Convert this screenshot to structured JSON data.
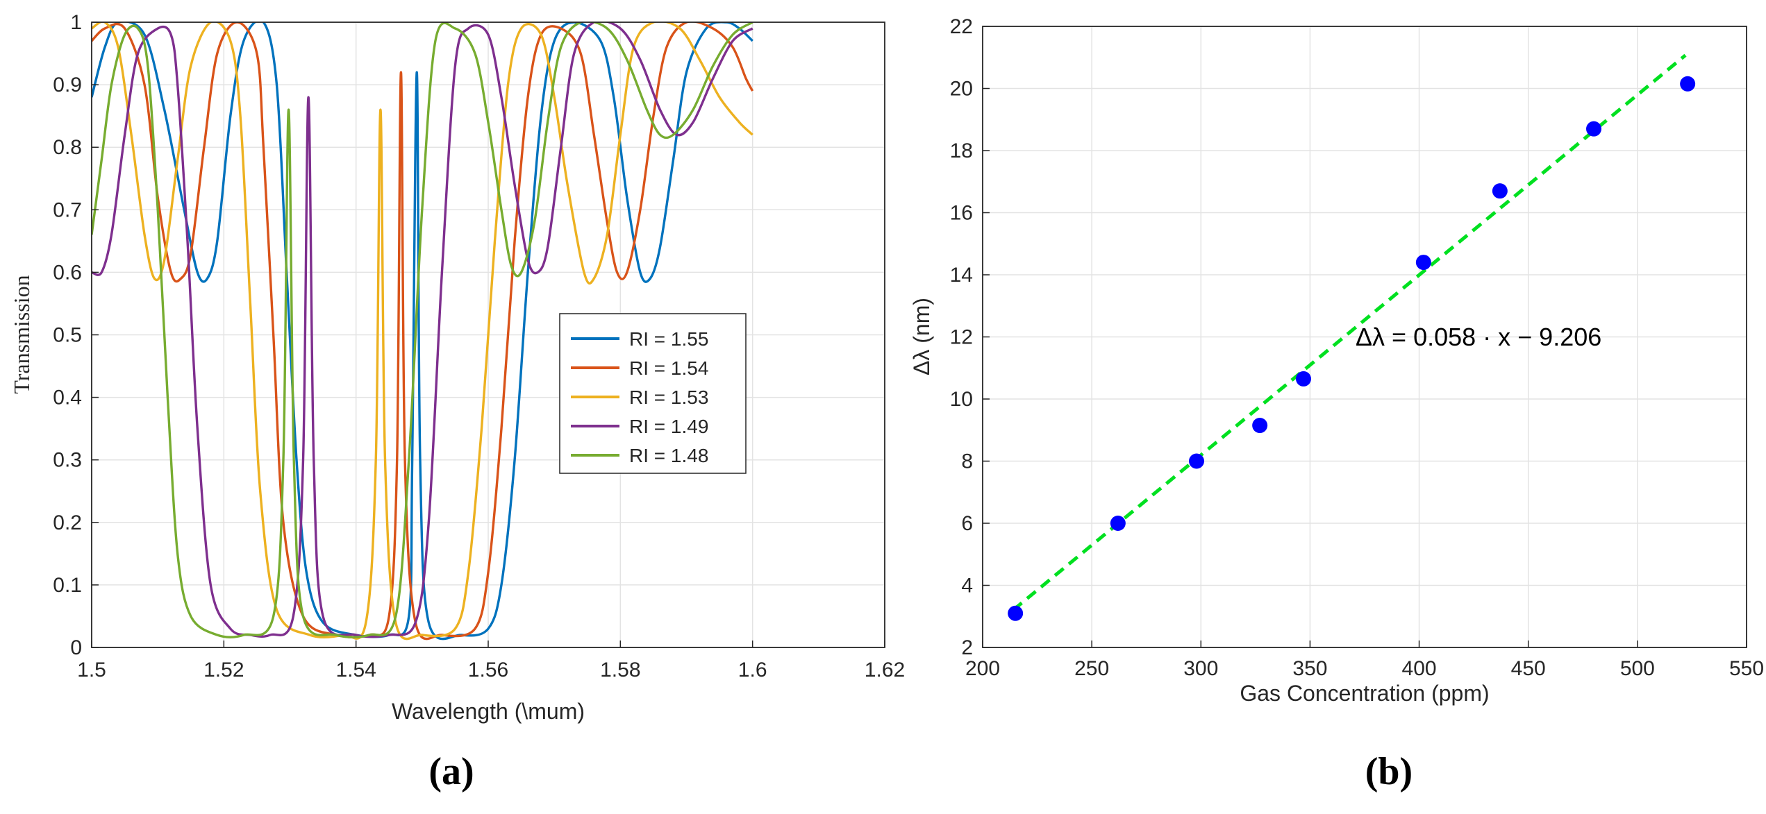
{
  "chart_data": [
    {
      "type": "line",
      "panel": "(a)",
      "xlabel": "Wavelength (\\mum)",
      "ylabel": "Transmission",
      "xlim": [
        1.5,
        1.62
      ],
      "ylim": [
        0,
        1
      ],
      "xticks": [
        "1.5",
        "1.52",
        "1.54",
        "1.56",
        "1.58",
        "1.6",
        "1.62"
      ],
      "yticks": [
        "0",
        "0.1",
        "0.2",
        "0.3",
        "0.4",
        "0.5",
        "0.6",
        "0.7",
        "0.8",
        "0.9",
        "1"
      ],
      "grid": true,
      "legend_position": "center-right",
      "series": [
        {
          "name": "RI = 1.55",
          "color": "#0072BD",
          "points": [
            [
              1.5,
              0.88
            ],
            [
              1.502,
              0.96
            ],
            [
              1.504,
              1.0
            ],
            [
              1.508,
              0.98
            ],
            [
              1.511,
              0.86
            ],
            [
              1.514,
              0.7
            ],
            [
              1.516,
              0.6
            ],
            [
              1.5175,
              0.59
            ],
            [
              1.519,
              0.65
            ],
            [
              1.521,
              0.85
            ],
            [
              1.523,
              0.97
            ],
            [
              1.526,
              1.0
            ],
            [
              1.528,
              0.9
            ],
            [
              1.5295,
              0.6
            ],
            [
              1.531,
              0.3
            ],
            [
              1.5325,
              0.12
            ],
            [
              1.535,
              0.04
            ],
            [
              1.54,
              0.02
            ],
            [
              1.545,
              0.02
            ],
            [
              1.548,
              0.05
            ],
            [
              1.5485,
              0.3
            ],
            [
              1.5492,
              0.92
            ],
            [
              1.5497,
              0.3
            ],
            [
              1.551,
              0.04
            ],
            [
              1.556,
              0.02
            ],
            [
              1.56,
              0.03
            ],
            [
              1.562,
              0.1
            ],
            [
              1.564,
              0.3
            ],
            [
              1.566,
              0.6
            ],
            [
              1.568,
              0.85
            ],
            [
              1.57,
              0.97
            ],
            [
              1.573,
              1.0
            ],
            [
              1.577,
              0.97
            ],
            [
              1.579,
              0.88
            ],
            [
              1.581,
              0.72
            ],
            [
              1.583,
              0.6
            ],
            [
              1.5845,
              0.59
            ],
            [
              1.586,
              0.64
            ],
            [
              1.588,
              0.78
            ],
            [
              1.59,
              0.92
            ],
            [
              1.593,
              0.99
            ],
            [
              1.596,
              1.0
            ],
            [
              1.598,
              0.99
            ],
            [
              1.6,
              0.97
            ]
          ]
        },
        {
          "name": "RI = 1.54",
          "color": "#D95319",
          "points": [
            [
              1.5,
              0.97
            ],
            [
              1.502,
              0.99
            ],
            [
              1.505,
              0.99
            ],
            [
              1.508,
              0.9
            ],
            [
              1.51,
              0.72
            ],
            [
              1.512,
              0.6
            ],
            [
              1.5135,
              0.59
            ],
            [
              1.515,
              0.63
            ],
            [
              1.517,
              0.8
            ],
            [
              1.519,
              0.95
            ],
            [
              1.522,
              1.0
            ],
            [
              1.525,
              0.95
            ],
            [
              1.526,
              0.8
            ],
            [
              1.5275,
              0.5
            ],
            [
              1.529,
              0.2
            ],
            [
              1.532,
              0.05
            ],
            [
              1.537,
              0.02
            ],
            [
              1.542,
              0.02
            ],
            [
              1.545,
              0.05
            ],
            [
              1.5462,
              0.3
            ],
            [
              1.5468,
              0.92
            ],
            [
              1.5474,
              0.3
            ],
            [
              1.549,
              0.04
            ],
            [
              1.553,
              0.02
            ],
            [
              1.558,
              0.03
            ],
            [
              1.56,
              0.12
            ],
            [
              1.562,
              0.35
            ],
            [
              1.564,
              0.65
            ],
            [
              1.566,
              0.88
            ],
            [
              1.568,
              0.98
            ],
            [
              1.571,
              0.99
            ],
            [
              1.574,
              0.95
            ],
            [
              1.576,
              0.82
            ],
            [
              1.578,
              0.68
            ],
            [
              1.5795,
              0.6
            ],
            [
              1.581,
              0.6
            ],
            [
              1.583,
              0.7
            ],
            [
              1.585,
              0.85
            ],
            [
              1.587,
              0.96
            ],
            [
              1.59,
              1.0
            ],
            [
              1.594,
              0.99
            ],
            [
              1.597,
              0.96
            ],
            [
              1.599,
              0.91
            ],
            [
              1.6,
              0.89
            ]
          ]
        },
        {
          "name": "RI = 1.53",
          "color": "#EDB120",
          "points": [
            [
              1.5,
              0.99
            ],
            [
              1.502,
              1.0
            ],
            [
              1.504,
              0.96
            ],
            [
              1.506,
              0.82
            ],
            [
              1.508,
              0.66
            ],
            [
              1.5095,
              0.59
            ],
            [
              1.511,
              0.62
            ],
            [
              1.513,
              0.78
            ],
            [
              1.515,
              0.93
            ],
            [
              1.518,
              1.0
            ],
            [
              1.521,
              0.97
            ],
            [
              1.5225,
              0.85
            ],
            [
              1.524,
              0.55
            ],
            [
              1.5255,
              0.25
            ],
            [
              1.528,
              0.06
            ],
            [
              1.533,
              0.02
            ],
            [
              1.538,
              0.02
            ],
            [
              1.5415,
              0.04
            ],
            [
              1.543,
              0.3
            ],
            [
              1.5437,
              0.86
            ],
            [
              1.5444,
              0.3
            ],
            [
              1.546,
              0.04
            ],
            [
              1.55,
              0.02
            ],
            [
              1.555,
              0.03
            ],
            [
              1.557,
              0.12
            ],
            [
              1.559,
              0.35
            ],
            [
              1.561,
              0.65
            ],
            [
              1.563,
              0.9
            ],
            [
              1.565,
              0.99
            ],
            [
              1.568,
              0.98
            ],
            [
              1.57,
              0.88
            ],
            [
              1.572,
              0.74
            ],
            [
              1.5745,
              0.6
            ],
            [
              1.576,
              0.59
            ],
            [
              1.578,
              0.66
            ],
            [
              1.58,
              0.82
            ],
            [
              1.582,
              0.96
            ],
            [
              1.585,
              1.0
            ],
            [
              1.589,
              0.99
            ],
            [
              1.592,
              0.94
            ],
            [
              1.595,
              0.88
            ],
            [
              1.598,
              0.84
            ],
            [
              1.6,
              0.82
            ]
          ]
        },
        {
          "name": "RI = 1.49",
          "color": "#7E2F8E",
          "points": [
            [
              1.5,
              0.6
            ],
            [
              1.5015,
              0.6
            ],
            [
              1.503,
              0.66
            ],
            [
              1.505,
              0.82
            ],
            [
              1.507,
              0.95
            ],
            [
              1.51,
              0.99
            ],
            [
              1.512,
              0.98
            ],
            [
              1.513,
              0.9
            ],
            [
              1.5145,
              0.65
            ],
            [
              1.516,
              0.35
            ],
            [
              1.518,
              0.1
            ],
            [
              1.521,
              0.03
            ],
            [
              1.524,
              0.02
            ],
            [
              1.527,
              0.02
            ],
            [
              1.5305,
              0.05
            ],
            [
              1.532,
              0.3
            ],
            [
              1.5328,
              0.88
            ],
            [
              1.5336,
              0.3
            ],
            [
              1.535,
              0.05
            ],
            [
              1.54,
              0.02
            ],
            [
              1.545,
              0.02
            ],
            [
              1.549,
              0.04
            ],
            [
              1.551,
              0.2
            ],
            [
              1.553,
              0.6
            ],
            [
              1.555,
              0.93
            ],
            [
              1.557,
              0.99
            ],
            [
              1.56,
              0.98
            ],
            [
              1.562,
              0.88
            ],
            [
              1.564,
              0.74
            ],
            [
              1.566,
              0.62
            ],
            [
              1.5675,
              0.6
            ],
            [
              1.569,
              0.64
            ],
            [
              1.571,
              0.8
            ],
            [
              1.573,
              0.95
            ],
            [
              1.576,
              1.0
            ],
            [
              1.58,
              0.99
            ],
            [
              1.583,
              0.94
            ],
            [
              1.586,
              0.86
            ],
            [
              1.5885,
              0.82
            ],
            [
              1.591,
              0.84
            ],
            [
              1.594,
              0.91
            ],
            [
              1.597,
              0.97
            ],
            [
              1.6,
              0.99
            ]
          ]
        },
        {
          "name": "RI = 1.48",
          "color": "#77AC30",
          "points": [
            [
              1.5,
              0.66
            ],
            [
              1.5015,
              0.78
            ],
            [
              1.503,
              0.9
            ],
            [
              1.505,
              0.98
            ],
            [
              1.507,
              0.99
            ],
            [
              1.5085,
              0.93
            ],
            [
              1.51,
              0.7
            ],
            [
              1.5115,
              0.4
            ],
            [
              1.513,
              0.15
            ],
            [
              1.515,
              0.05
            ],
            [
              1.519,
              0.02
            ],
            [
              1.523,
              0.02
            ],
            [
              1.5275,
              0.05
            ],
            [
              1.529,
              0.3
            ],
            [
              1.5298,
              0.86
            ],
            [
              1.5306,
              0.3
            ],
            [
              1.532,
              0.05
            ],
            [
              1.537,
              0.02
            ],
            [
              1.542,
              0.02
            ],
            [
              1.546,
              0.05
            ],
            [
              1.548,
              0.3
            ],
            [
              1.55,
              0.7
            ],
            [
              1.552,
              0.97
            ],
            [
              1.555,
              0.99
            ],
            [
              1.558,
              0.95
            ],
            [
              1.56,
              0.84
            ],
            [
              1.562,
              0.7
            ],
            [
              1.5635,
              0.61
            ],
            [
              1.565,
              0.6
            ],
            [
              1.567,
              0.68
            ],
            [
              1.569,
              0.84
            ],
            [
              1.571,
              0.96
            ],
            [
              1.574,
              1.0
            ],
            [
              1.578,
              0.99
            ],
            [
              1.581,
              0.94
            ],
            [
              1.584,
              0.86
            ],
            [
              1.586,
              0.82
            ],
            [
              1.588,
              0.82
            ],
            [
              1.591,
              0.86
            ],
            [
              1.594,
              0.93
            ],
            [
              1.597,
              0.98
            ],
            [
              1.6,
              1.0
            ]
          ]
        }
      ]
    },
    {
      "type": "scatter",
      "panel": "(b)",
      "xlabel": "Gas Concentration (ppm)",
      "ylabel": "Δλ (nm)",
      "xlim": [
        200,
        550
      ],
      "ylim": [
        2,
        22
      ],
      "xticks": [
        "200",
        "250",
        "300",
        "350",
        "400",
        "450",
        "500",
        "550"
      ],
      "yticks": [
        "2",
        "4",
        "6",
        "8",
        "10",
        "12",
        "14",
        "16",
        "18",
        "20",
        "22"
      ],
      "grid": true,
      "points": {
        "x": [
          215,
          262,
          298,
          327,
          347,
          402,
          437,
          480,
          523
        ],
        "y": [
          3.1,
          6.0,
          8.0,
          9.15,
          10.65,
          14.4,
          16.7,
          18.7,
          20.15
        ]
      },
      "point_color": "#0000FF",
      "fit": {
        "slope": 0.058,
        "intercept": -9.206,
        "x_range": [
          214,
          522
        ],
        "color": "#00E020",
        "style": "dashed"
      },
      "annotation": "Δλ = 0.058 · x − 9.206"
    }
  ],
  "captions": [
    "(a)",
    "(b)"
  ]
}
